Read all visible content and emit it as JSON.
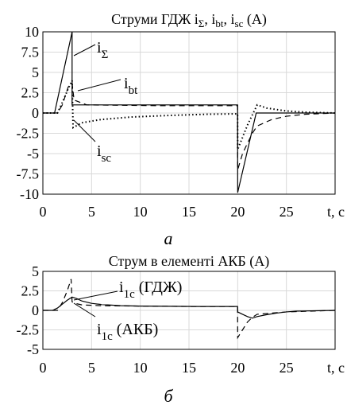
{
  "chart_data": [
    {
      "type": "line",
      "title_parts": [
        "Струми ГДЖ i",
        "Σ",
        ", i",
        "bt",
        ", i",
        "sc",
        " (А)"
      ],
      "xlabel": "t, с",
      "xlim": [
        0,
        30
      ],
      "ylim": [
        -10,
        10
      ],
      "x_ticks": [
        "0",
        "5",
        "10",
        "15",
        "20",
        "25"
      ],
      "y_ticks": [
        "10",
        "7.5",
        "5",
        "2.5",
        "0",
        "-2.5",
        "-5",
        "-7.5",
        "-10"
      ],
      "grid": true,
      "annotations": [
        {
          "main": "i",
          "sub": "Σ"
        },
        {
          "main": "i",
          "sub": "bt"
        },
        {
          "main": "i",
          "sub": "sc"
        }
      ],
      "caption": "а",
      "series": [
        {
          "style": "solid",
          "x": [
            0,
            1.2,
            3.0,
            3.0,
            3.2,
            19.99,
            20.0,
            21.9,
            22.0,
            30
          ],
          "y": [
            0,
            0,
            10,
            1,
            1,
            1,
            -9.8,
            0,
            0,
            0
          ]
        },
        {
          "style": "dashed",
          "x": [
            0,
            1.5,
            2.0,
            2.6,
            3.0,
            3.2,
            4.5,
            8,
            12,
            19.99,
            20.0,
            20.5,
            21.5,
            22.0,
            23.5,
            25,
            27,
            30
          ],
          "y": [
            0,
            0,
            1.0,
            3.2,
            3.7,
            1.6,
            1.0,
            0.95,
            0.9,
            0.9,
            -7.0,
            -5.0,
            -2.5,
            -1.6,
            -0.8,
            -0.4,
            -0.15,
            0
          ]
        },
        {
          "style": "dotted",
          "x": [
            0,
            1.5,
            2.0,
            2.6,
            3.0,
            3.1,
            4,
            6,
            9,
            13,
            17,
            19.99,
            20.0,
            21,
            22.0,
            23,
            25,
            27,
            30
          ],
          "y": [
            0,
            0,
            1.3,
            3.0,
            4.0,
            -1.8,
            -1.2,
            -0.8,
            -0.5,
            -0.3,
            -0.15,
            -0.1,
            -4.5,
            -1.5,
            1.0,
            0.6,
            0.25,
            0.1,
            0
          ]
        }
      ]
    },
    {
      "type": "line",
      "title_parts": [
        "Струм в елементі АКБ (А)"
      ],
      "xlabel": "t, с",
      "xlim": [
        0,
        30
      ],
      "ylim": [
        -5,
        5
      ],
      "x_ticks": [
        "0",
        "5",
        "10",
        "15",
        "20",
        "25"
      ],
      "y_ticks": [
        "5",
        "2.5",
        "0",
        "-2.5",
        "-5"
      ],
      "grid": true,
      "annotations": [
        {
          "main": "i",
          "sub": "1c",
          "rest": " (ГДЖ)"
        },
        {
          "main": "i",
          "sub": "1c",
          "rest": " (АКБ)"
        }
      ],
      "caption": "б",
      "series": [
        {
          "style": "solid",
          "x": [
            0,
            1.0,
            1.5,
            2.0,
            2.5,
            3.0,
            3.5,
            4,
            5,
            6,
            8,
            10,
            13,
            16,
            19.99,
            20.0,
            20.5,
            21,
            21.5,
            22,
            23,
            24,
            25,
            26,
            28,
            30
          ],
          "y": [
            0,
            0,
            0.3,
            0.8,
            1.3,
            1.7,
            1.5,
            1.2,
            0.9,
            0.75,
            0.6,
            0.55,
            0.52,
            0.5,
            0.5,
            -0.2,
            -0.5,
            -0.8,
            -1.0,
            -0.8,
            -0.55,
            -0.35,
            -0.2,
            -0.1,
            -0.05,
            0
          ]
        },
        {
          "style": "dashed",
          "x": [
            0,
            1.5,
            2.0,
            2.5,
            2.9,
            3.0,
            3.3,
            4,
            6,
            10,
            15,
            19.99,
            20.0,
            20.5,
            21.0,
            21.5,
            22,
            25,
            30
          ],
          "y": [
            0,
            0,
            1.0,
            2.5,
            4.0,
            1.1,
            0.9,
            0.7,
            0.6,
            0.55,
            0.5,
            0.5,
            -3.5,
            -2.5,
            -1.5,
            -0.9,
            -0.5,
            -0.2,
            0
          ]
        }
      ]
    }
  ]
}
